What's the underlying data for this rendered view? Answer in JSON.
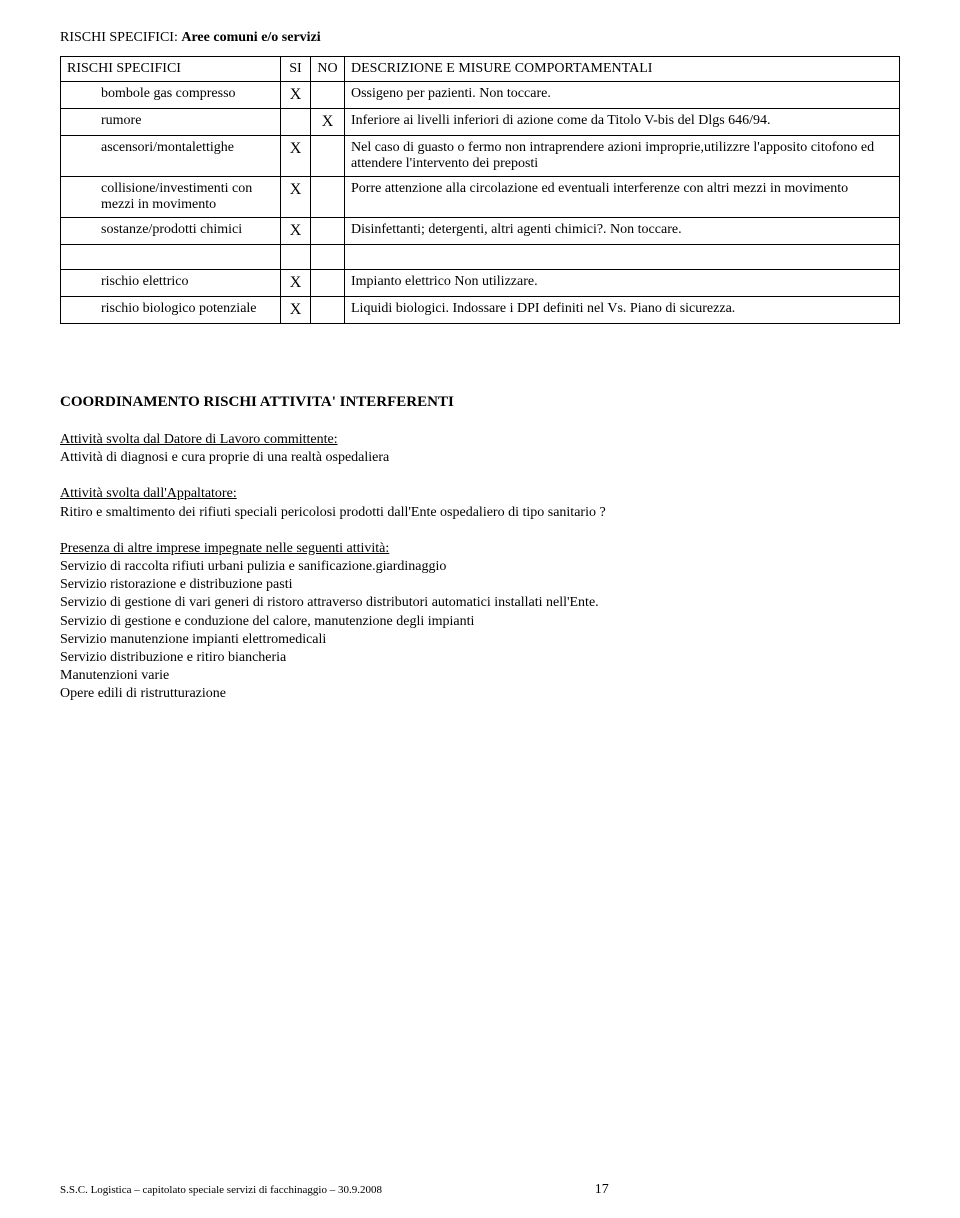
{
  "title_prefix": "RISCHI SPECIFICI: ",
  "title_bold": "Aree comuni e/o servizi",
  "table": {
    "header": {
      "risk": "RISCHI SPECIFICI",
      "si": "SI",
      "no": "NO",
      "desc": "DESCRIZIONE E MISURE COMPORTAMENTALI"
    },
    "rows": [
      {
        "risk": "bombole gas compresso",
        "si": "X",
        "no": "",
        "desc": "Ossigeno per pazienti. Non toccare."
      },
      {
        "risk": "rumore",
        "si": "",
        "no": "X",
        "desc": "Inferiore ai livelli inferiori di azione come da Titolo V-bis del Dlgs 646/94."
      },
      {
        "risk": "ascensori/montalettighe",
        "si": "X",
        "no": "",
        "desc": "Nel caso di guasto o fermo non intraprendere azioni improprie,utilizzre l'apposito citofono ed attendere  l'intervento dei preposti"
      },
      {
        "risk": "collisione/investimenti con mezzi in movimento",
        "si": "X",
        "no": "",
        "desc": "Porre attenzione alla circolazione ed eventuali interferenze con altri mezzi in movimento"
      },
      {
        "risk": "sostanze/prodotti chimici",
        "si": "X",
        "no": "",
        "desc": "Disinfettanti; detergenti, altri agenti chimici?. Non toccare."
      },
      {
        "blank": true
      },
      {
        "risk": "rischio elettrico",
        "si": "X",
        "no": "",
        "desc": "Impianto elettrico Non utilizzare."
      },
      {
        "risk": "rischio biologico potenziale",
        "si": "X",
        "no": "",
        "desc": "Liquidi biologici. Indossare i DPI definiti nel Vs. Piano di sicurezza."
      }
    ]
  },
  "coord_title": "COORDINAMENTO RISCHI ATTIVITA' INTERFERENTI",
  "p1_u": "Attività svolta dal Datore di Lavoro committente:",
  "p1_t": "Attività di diagnosi e cura proprie di una realtà ospedaliera",
  "p2_u": "Attività svolta dall'Appaltatore:",
  "p2_t": "Ritiro e smaltimento dei rifiuti speciali pericolosi prodotti dall'Ente ospedaliero di tipo sanitario ?",
  "p3_u": "Presenza di altre imprese impegnate nelle seguenti attività:",
  "p3_lines": [
    "Servizio di raccolta rifiuti urbani pulizia e sanificazione.giardinaggio",
    "Servizio ristorazione e distribuzione pasti",
    "Servizio di gestione di vari generi di ristoro attraverso distributori automatici installati nell'Ente.",
    "Servizio di gestione e conduzione del calore, manutenzione degli impianti",
    "Servizio manutenzione impianti elettromedicali",
    "Servizio distribuzione e ritiro biancheria",
    "Manutenzioni varie",
    "Opere edili di ristrutturazione"
  ],
  "footer_left": "S.S.C. Logistica – capitolato speciale  servizi di facchinaggio – 30.9.2008",
  "page_num": "17"
}
